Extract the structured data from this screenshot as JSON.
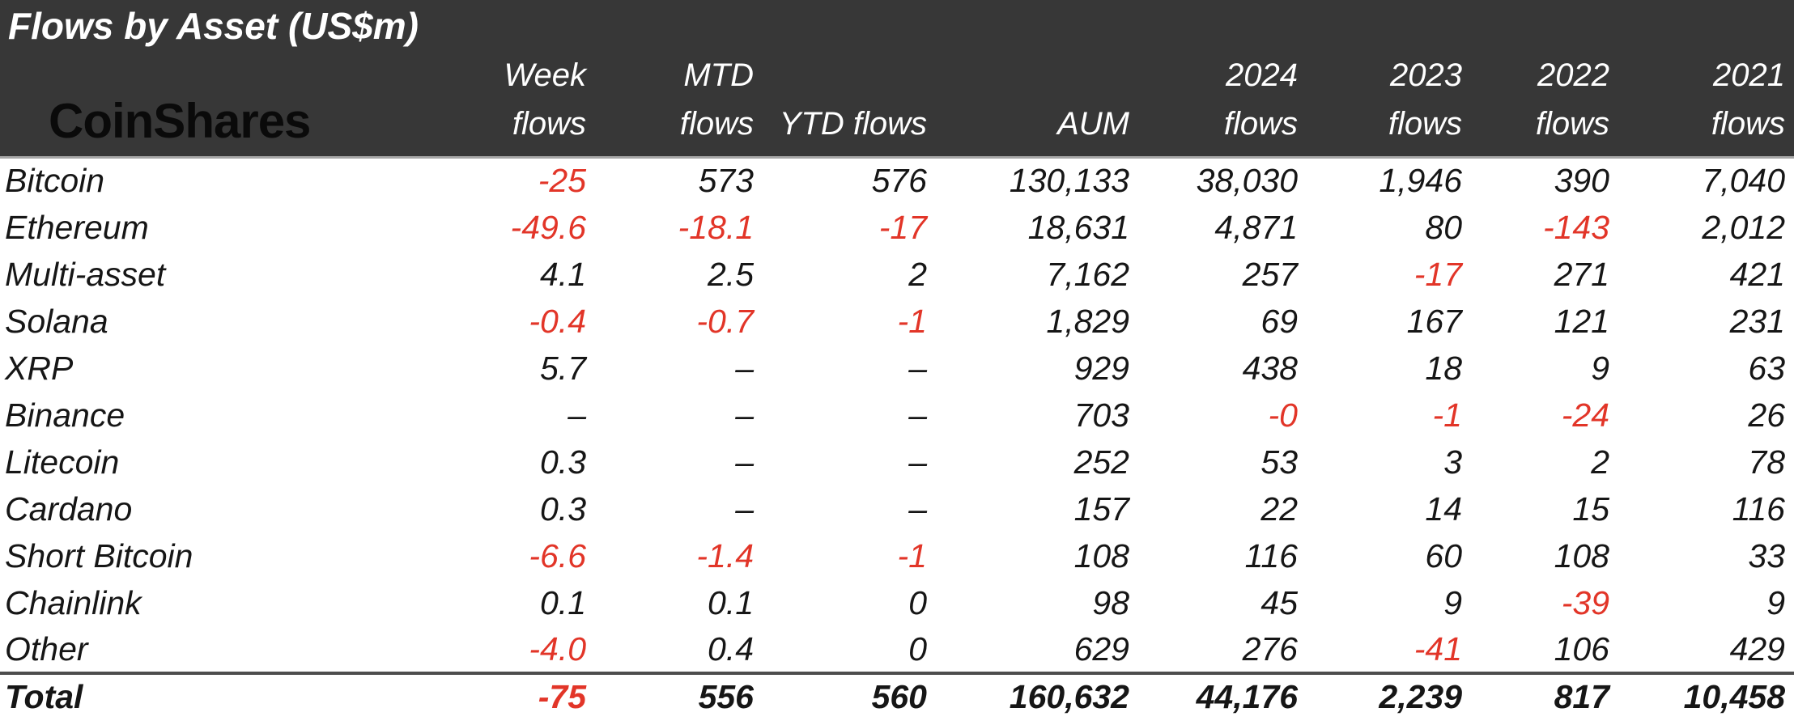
{
  "title": "Flows by Asset (US$m)",
  "logo_text": "CoinShares",
  "colors": {
    "header_background": "#373737",
    "title_text": "#ffffff",
    "logo_text": "#0a0a0a",
    "body_text": "#161616",
    "negative_value": "#e23528",
    "total_rule": "#4d4d4d",
    "header_underline": "#a6a6a6"
  },
  "chart_data": {
    "type": "table",
    "title": "Flows by Asset (US$m)",
    "columns": [
      {
        "label": "Week flows",
        "line1": "Week",
        "line2": "flows"
      },
      {
        "label": "MTD flows",
        "line1": "MTD",
        "line2": "flows"
      },
      {
        "label": "YTD flows",
        "line1": "",
        "line2": "YTD flows"
      },
      {
        "label": "AUM",
        "line1": "",
        "line2": "AUM"
      },
      {
        "label": "2024 flows",
        "line1": "2024",
        "line2": "flows"
      },
      {
        "label": "2023 flows",
        "line1": "2023",
        "line2": "flows"
      },
      {
        "label": "2022 flows",
        "line1": "2022",
        "line2": "flows"
      },
      {
        "label": "2021 flows",
        "line1": "2021",
        "line2": "flows"
      }
    ],
    "rows": [
      {
        "asset": "Bitcoin",
        "values": [
          "-25",
          "573",
          "576",
          "130,133",
          "38,030",
          "1,946",
          "390",
          "7,040"
        ]
      },
      {
        "asset": "Ethereum",
        "values": [
          "-49.6",
          "-18.1",
          "-17",
          "18,631",
          "4,871",
          "80",
          "-143",
          "2,012"
        ]
      },
      {
        "asset": "Multi-asset",
        "values": [
          "4.1",
          "2.5",
          "2",
          "7,162",
          "257",
          "-17",
          "271",
          "421"
        ]
      },
      {
        "asset": "Solana",
        "values": [
          "-0.4",
          "-0.7",
          "-1",
          "1,829",
          "69",
          "167",
          "121",
          "231"
        ]
      },
      {
        "asset": "XRP",
        "values": [
          "5.7",
          "–",
          "–",
          "929",
          "438",
          "18",
          "9",
          "63"
        ]
      },
      {
        "asset": "Binance",
        "values": [
          "–",
          "–",
          "–",
          "703",
          "-0",
          "-1",
          "-24",
          "26"
        ]
      },
      {
        "asset": "Litecoin",
        "values": [
          "0.3",
          "–",
          "–",
          "252",
          "53",
          "3",
          "2",
          "78"
        ]
      },
      {
        "asset": "Cardano",
        "values": [
          "0.3",
          "–",
          "–",
          "157",
          "22",
          "14",
          "15",
          "116"
        ]
      },
      {
        "asset": "Short Bitcoin",
        "values": [
          "-6.6",
          "-1.4",
          "-1",
          "108",
          "116",
          "60",
          "108",
          "33"
        ]
      },
      {
        "asset": "Chainlink",
        "values": [
          "0.1",
          "0.1",
          "0",
          "98",
          "45",
          "9",
          "-39",
          "9"
        ]
      },
      {
        "asset": "Other",
        "values": [
          "-4.0",
          "0.4",
          "0",
          "629",
          "276",
          "-41",
          "106",
          "429"
        ]
      }
    ],
    "total": {
      "asset": "Total",
      "values": [
        "-75",
        "556",
        "560",
        "160,632",
        "44,176",
        "2,239",
        "817",
        "10,458"
      ]
    }
  }
}
